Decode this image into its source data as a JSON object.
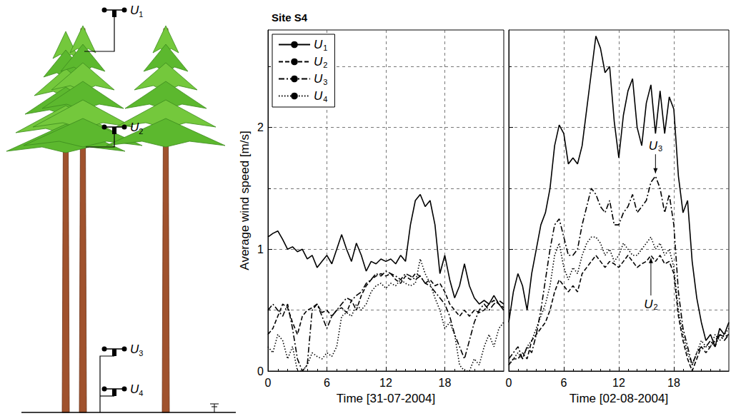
{
  "diagram": {
    "sensors": [
      "U1",
      "U2",
      "U3",
      "U4"
    ]
  },
  "chart_data": [
    {
      "type": "line",
      "title": "Site S4",
      "xlabel": "Time [31-07-2004]",
      "ylabel": "Average wind speed [m/s]",
      "xlim": [
        0,
        24
      ],
      "xticks": [
        0,
        6,
        12,
        18
      ],
      "ylim": [
        0,
        2.8
      ],
      "yticks": [
        0,
        1,
        2
      ],
      "grid": true,
      "legend": "upper left",
      "tick_labels": true,
      "x": [
        0,
        0.5,
        1,
        1.5,
        2,
        2.5,
        3,
        3.5,
        4,
        4.5,
        5,
        5.5,
        6,
        6.5,
        7,
        7.5,
        8,
        8.5,
        9,
        9.5,
        10,
        10.5,
        11,
        11.5,
        12,
        12.5,
        13,
        13.5,
        14,
        14.5,
        15,
        15.5,
        16,
        16.5,
        17,
        17.5,
        18,
        18.5,
        19,
        19.5,
        20,
        20.5,
        21,
        21.5,
        22,
        22.5,
        23,
        23.5,
        24
      ],
      "series": [
        {
          "name": "U1",
          "color": "#000000",
          "line_style": "solid",
          "values": [
            1.1,
            1.13,
            1.15,
            1.08,
            1.0,
            1.02,
            0.98,
            1.0,
            0.92,
            0.95,
            0.85,
            0.9,
            0.95,
            0.88,
            1.0,
            1.12,
            1.0,
            0.9,
            1.05,
            0.95,
            0.82,
            0.9,
            0.88,
            0.92,
            0.9,
            0.92,
            0.88,
            0.95,
            0.9,
            1.2,
            1.4,
            1.45,
            1.35,
            1.4,
            1.2,
            0.8,
            0.95,
            0.75,
            0.6,
            0.7,
            0.88,
            0.7,
            0.6,
            0.55,
            0.58,
            0.55,
            0.62,
            0.55,
            0.5
          ]
        },
        {
          "name": "U2",
          "color": "#000000",
          "line_style": "dashed",
          "values": [
            0.3,
            0.35,
            0.45,
            0.55,
            0.52,
            0.4,
            0.3,
            0.45,
            0.5,
            0.52,
            0.55,
            0.48,
            0.5,
            0.45,
            0.5,
            0.52,
            0.48,
            0.58,
            0.5,
            0.62,
            0.7,
            0.75,
            0.78,
            0.8,
            0.78,
            0.8,
            0.75,
            0.72,
            0.78,
            0.75,
            0.8,
            0.78,
            0.72,
            0.75,
            0.7,
            0.72,
            0.65,
            0.55,
            0.5,
            0.45,
            0.5,
            0.45,
            0.5,
            0.48,
            0.5,
            0.55,
            0.58,
            0.55,
            0.52
          ]
        },
        {
          "name": "U3",
          "color": "#000000",
          "line_style": "dashdot",
          "values": [
            0.5,
            0.55,
            0.5,
            0.45,
            0.55,
            0.35,
            0.1,
            0.0,
            0.05,
            0.5,
            0.55,
            0.45,
            0.35,
            0.45,
            0.5,
            0.55,
            0.6,
            0.58,
            0.62,
            0.65,
            0.72,
            0.75,
            0.8,
            0.78,
            0.82,
            0.8,
            0.78,
            0.75,
            0.8,
            0.78,
            0.75,
            0.78,
            0.72,
            0.7,
            0.65,
            0.6,
            0.55,
            0.45,
            0.3,
            0.2,
            0.1,
            0.25,
            0.4,
            0.5,
            0.55,
            0.5,
            0.55,
            0.58,
            0.55
          ]
        },
        {
          "name": "U4",
          "color": "#000000",
          "line_style": "dotted",
          "values": [
            0.2,
            0.15,
            0.3,
            0.25,
            0.1,
            0.2,
            0.0,
            0.0,
            0.05,
            0.15,
            0.12,
            0.1,
            0.15,
            0.12,
            0.2,
            0.45,
            0.48,
            0.45,
            0.55,
            0.5,
            0.55,
            0.65,
            0.7,
            0.72,
            0.68,
            0.72,
            0.7,
            0.75,
            0.72,
            0.7,
            0.72,
            0.92,
            0.8,
            0.72,
            0.6,
            0.5,
            0.35,
            0.4,
            0.3,
            0.05,
            0.0,
            0.0,
            0.1,
            0.05,
            0.2,
            0.3,
            0.2,
            0.35,
            0.4
          ]
        }
      ]
    },
    {
      "type": "line",
      "xlabel": "Time [02-08-2004]",
      "xlim": [
        0,
        24
      ],
      "xticks": [
        0,
        6,
        12,
        18
      ],
      "ylim": [
        0,
        2.8
      ],
      "yticks": [
        0,
        1,
        2
      ],
      "grid": true,
      "tick_labels": "x",
      "x": [
        0,
        0.5,
        1,
        1.5,
        2,
        2.5,
        3,
        3.5,
        4,
        4.5,
        5,
        5.5,
        6,
        6.5,
        7,
        7.5,
        8,
        8.5,
        9,
        9.5,
        10,
        10.5,
        11,
        11.5,
        12,
        12.5,
        13,
        13.5,
        14,
        14.5,
        15,
        15.5,
        16,
        16.5,
        17,
        17.5,
        18,
        18.5,
        19,
        19.5,
        20,
        20.5,
        21,
        21.5,
        22,
        22.5,
        23,
        23.5,
        24
      ],
      "series": [
        {
          "name": "U1",
          "color": "#000000",
          "line_style": "solid",
          "values": [
            0.4,
            0.65,
            0.8,
            0.7,
            0.5,
            0.8,
            1.0,
            1.2,
            1.3,
            1.5,
            1.85,
            2.02,
            1.95,
            1.7,
            1.75,
            1.7,
            1.85,
            2.15,
            2.45,
            2.75,
            2.65,
            2.45,
            2.5,
            2.05,
            1.75,
            2.1,
            2.3,
            2.4,
            2.0,
            1.85,
            2.2,
            2.35,
            1.95,
            2.3,
            1.95,
            2.25,
            2.15,
            1.6,
            1.3,
            1.4,
            0.9,
            0.6,
            0.4,
            0.25,
            0.3,
            0.2,
            0.35,
            0.3,
            0.4
          ]
        },
        {
          "name": "U2",
          "color": "#000000",
          "line_style": "dashed",
          "values": [
            0.05,
            0.1,
            0.1,
            0.15,
            0.1,
            0.25,
            0.3,
            0.35,
            0.4,
            0.5,
            0.65,
            0.75,
            0.7,
            0.65,
            0.7,
            0.65,
            0.8,
            0.85,
            0.9,
            0.95,
            0.9,
            0.85,
            0.9,
            0.88,
            0.85,
            0.9,
            0.95,
            0.9,
            0.85,
            0.88,
            0.9,
            0.95,
            0.9,
            0.95,
            0.88,
            0.9,
            0.8,
            0.45,
            0.25,
            0.1,
            0.0,
            0.1,
            0.2,
            0.15,
            0.2,
            0.25,
            0.3,
            0.28,
            0.3
          ]
        },
        {
          "name": "U3",
          "color": "#000000",
          "line_style": "dashdot",
          "values": [
            0.1,
            0.15,
            0.2,
            0.1,
            0.2,
            0.15,
            0.3,
            0.5,
            0.75,
            1.0,
            1.2,
            1.25,
            1.1,
            0.95,
            0.95,
            1.0,
            1.2,
            1.35,
            1.5,
            1.45,
            1.35,
            1.3,
            1.4,
            1.2,
            1.2,
            1.3,
            1.35,
            1.45,
            1.3,
            1.35,
            1.4,
            1.55,
            1.6,
            1.5,
            1.3,
            1.45,
            1.2,
            0.65,
            0.35,
            0.2,
            0.05,
            0.15,
            0.2,
            0.2,
            0.25,
            0.2,
            0.3,
            0.25,
            0.3
          ]
        },
        {
          "name": "U4",
          "color": "#000000",
          "line_style": "dotted",
          "values": [
            0.05,
            0.1,
            0.15,
            0.1,
            0.2,
            0.25,
            0.35,
            0.45,
            0.55,
            0.7,
            0.95,
            1.05,
            0.85,
            0.75,
            0.85,
            0.8,
            0.95,
            1.05,
            1.1,
            1.1,
            1.05,
            0.95,
            1.0,
            0.9,
            0.95,
            1.05,
            1.0,
            0.95,
            0.95,
            1.0,
            1.05,
            1.1,
            1.0,
            1.05,
            0.95,
            1.0,
            0.85,
            0.5,
            0.3,
            0.15,
            0.05,
            0.15,
            0.25,
            0.2,
            0.2,
            0.3,
            0.25,
            0.3,
            0.35
          ]
        }
      ],
      "annotations": [
        {
          "text": "U3",
          "x": 16,
          "y": 1.85
        },
        {
          "text": "U2",
          "x": 15.5,
          "y": 0.55
        }
      ]
    }
  ]
}
